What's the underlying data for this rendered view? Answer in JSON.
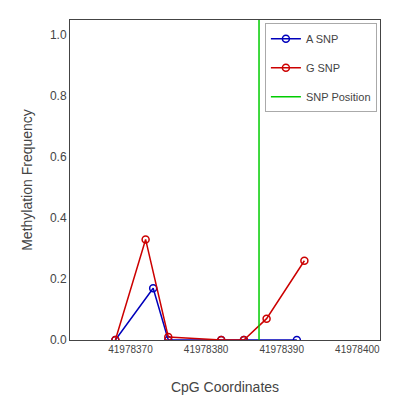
{
  "chart_data": {
    "type": "line",
    "xlabel": "CpG Coordinates",
    "ylabel": "Methylation Frequency",
    "series": [
      {
        "name": "A SNP",
        "color": "#0000bb",
        "marker": "open circle",
        "x": [
          41978368,
          41978373,
          41978375,
          41978382,
          41978385,
          41978392
        ],
        "values": [
          0.0,
          0.17,
          0.0,
          0.0,
          0.0,
          0.0
        ]
      },
      {
        "name": "G SNP",
        "color": "#cc0000",
        "marker": "open circle",
        "x": [
          41978368,
          41978372,
          41978375,
          41978382,
          41978385,
          41978388,
          41978393
        ],
        "values": [
          0.0,
          0.33,
          0.01,
          0.0,
          0.0,
          0.07,
          0.26
        ]
      },
      {
        "name": "SNP Position",
        "color": "#00cc00",
        "type": "vline",
        "x": [
          41978387
        ]
      }
    ],
    "xlim": [
      41978362,
      41978403
    ],
    "xticks": [
      41978370,
      41978380,
      41978390,
      41978400
    ],
    "ylim": [
      0.0,
      1.05
    ],
    "yticks": [
      {
        "value": 0.0,
        "label": "0.0"
      },
      0.2,
      0.4,
      0.6,
      0.8,
      {
        "value": 1.0,
        "label": "1.0"
      }
    ],
    "grid": false,
    "legend": "upper right"
  }
}
